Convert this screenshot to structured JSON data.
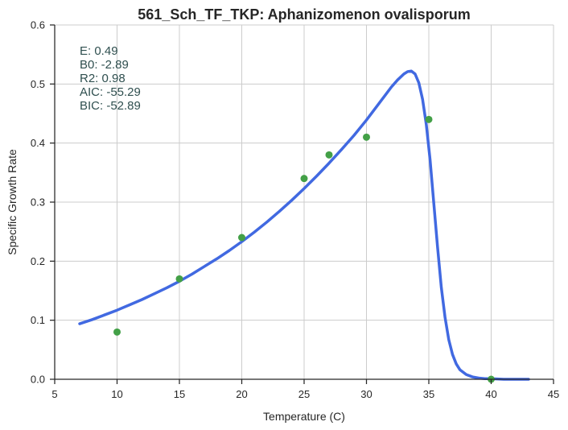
{
  "chart_data": {
    "type": "scatter",
    "title": "561_Sch_TF_TKP: Aphanizomenon ovalisporum",
    "xlabel": "Temperature (C)",
    "ylabel": "Specific Growth Rate",
    "xlim": [
      5,
      45
    ],
    "ylim": [
      0,
      0.6
    ],
    "xticks": [
      "5",
      "10",
      "15",
      "20",
      "25",
      "30",
      "35",
      "40",
      "45"
    ],
    "yticks": [
      "0.0",
      "0.1",
      "0.2",
      "0.3",
      "0.4",
      "0.5",
      "0.6"
    ],
    "grid": true,
    "series": [
      {
        "kind": "scatter",
        "color": "#43a047",
        "x": [
          10,
          15,
          20,
          25,
          27,
          30,
          35,
          40
        ],
        "y": [
          0.08,
          0.17,
          0.24,
          0.34,
          0.38,
          0.41,
          0.44,
          0.0
        ]
      },
      {
        "kind": "line",
        "color": "#4169e1",
        "x": [
          7,
          8,
          9,
          10,
          11,
          12,
          13,
          14,
          15,
          16,
          17,
          18,
          19,
          20,
          21,
          22,
          23,
          24,
          25,
          26,
          27,
          28,
          29,
          30,
          30.5,
          31,
          31.5,
          32,
          32.5,
          33,
          33.3,
          33.6,
          33.9,
          34.2,
          34.5,
          34.8,
          35.1,
          35.4,
          35.7,
          36,
          36.3,
          36.6,
          36.9,
          37.2,
          37.5,
          38,
          38.5,
          39,
          39.5,
          40,
          41,
          42,
          43
        ],
        "y": [
          0.094,
          0.101,
          0.109,
          0.117,
          0.126,
          0.135,
          0.145,
          0.155,
          0.166,
          0.178,
          0.191,
          0.204,
          0.218,
          0.233,
          0.249,
          0.266,
          0.284,
          0.303,
          0.323,
          0.344,
          0.366,
          0.389,
          0.413,
          0.439,
          0.453,
          0.467,
          0.481,
          0.495,
          0.507,
          0.517,
          0.521,
          0.522,
          0.517,
          0.502,
          0.474,
          0.431,
          0.372,
          0.298,
          0.224,
          0.156,
          0.105,
          0.067,
          0.042,
          0.026,
          0.016,
          0.008,
          0.004,
          0.002,
          0.001,
          0.001,
          0.0,
          0.0,
          0.0
        ]
      }
    ]
  },
  "stats": {
    "e": "E:  0.49",
    "b0": "B0:  -2.89",
    "r2": "R2:  0.98",
    "aic": "AIC: -55.29",
    "bic": "BIC: -52.89"
  }
}
